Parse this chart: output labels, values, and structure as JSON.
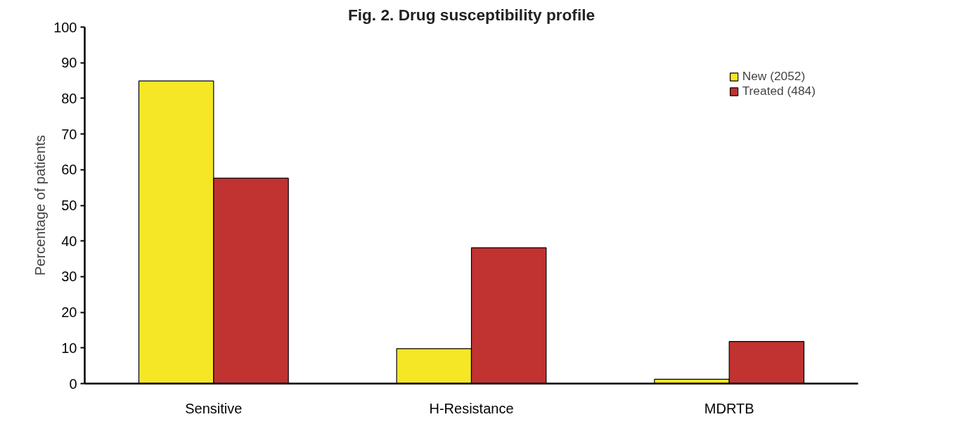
{
  "chart_data": {
    "type": "bar",
    "title": "Fig. 2. Drug susceptibility profile",
    "ylabel": "Percentage of patients",
    "categories": [
      "Sensitive",
      "H-Resistance",
      "MDRTB"
    ],
    "series": [
      {
        "name": "New (2052)",
        "color": "#f5e626",
        "values": [
          84.9,
          9.8,
          1.2
        ]
      },
      {
        "name": "Treated (484)",
        "color": "#c03331",
        "values": [
          57.6,
          38.1,
          11.8
        ]
      }
    ],
    "ylim": [
      0,
      100
    ],
    "yticks": [
      0,
      10,
      20,
      30,
      40,
      50,
      60,
      70,
      80,
      90,
      100
    ],
    "grid": false,
    "legend": "top right"
  }
}
